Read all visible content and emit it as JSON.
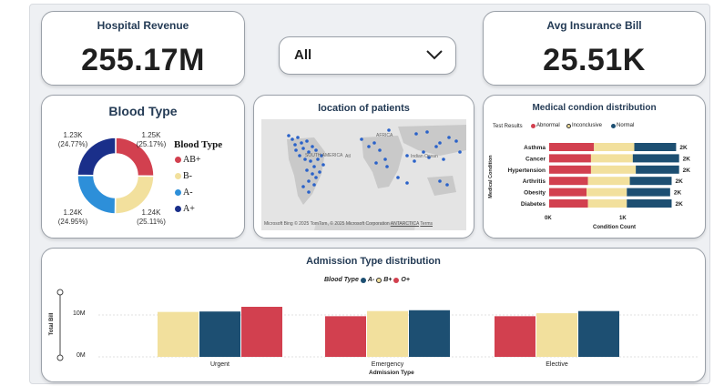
{
  "colors": {
    "red": "#d2404f",
    "cream": "#f2e09d",
    "navy": "#1d4f72",
    "blue": "#2d8fd9",
    "dark_blue": "#1a2f8a",
    "map_dot": "#2a62c9"
  },
  "kpi_revenue": {
    "title": "Hospital Revenue",
    "value": "255.17M"
  },
  "kpi_bill": {
    "title": "Avg Insurance Bill",
    "value": "25.51K"
  },
  "slicer": {
    "value": "All",
    "icon": "chevron-down-icon"
  },
  "blood": {
    "title": "Blood Type",
    "legend_title": "Blood Type",
    "legend": [
      "AB+",
      "B-",
      "A-",
      "A+"
    ],
    "labels": [
      {
        "value": "1.23K",
        "pct": "(24.77%)"
      },
      {
        "value": "1.25K",
        "pct": "(25.17%)"
      },
      {
        "value": "1.24K",
        "pct": "(24.95%)"
      },
      {
        "value": "1.24K",
        "pct": "(25.11%)"
      }
    ]
  },
  "map": {
    "title": "location of patients",
    "labels": [
      "SOUTH AMERICA",
      "AFRICA",
      "Indian Ocean",
      "ANTARCTICA",
      "Atl"
    ],
    "attribution": "© 2025 TomTom, © 2025 Microsoft Corporation",
    "terms": "Terms",
    "bing": "Microsoft Bing"
  },
  "medical": {
    "title": "Medical condion distribution",
    "legend_title": "Test Results",
    "legend": [
      "Abnormal",
      "Inconclusive",
      "Normal"
    ],
    "ylabel": "Medical Condition",
    "xlabel": "Condition Count",
    "xticks": [
      "0K",
      "1K"
    ]
  },
  "admission": {
    "title": "Admission Type distribution",
    "legend_title": "Blood Type",
    "legend": [
      "A-",
      "B+",
      "O+"
    ],
    "ylabel": "Total Bill",
    "xlabel": "Admission Type",
    "yticks": [
      "10M",
      "0M"
    ]
  },
  "chart_data": [
    {
      "type": "pie",
      "title": "Blood Type",
      "categories": [
        "AB+",
        "B-",
        "A-",
        "A+"
      ],
      "values": [
        1.25,
        1.24,
        1.24,
        1.23
      ],
      "unit": "K",
      "percent": [
        25.17,
        25.11,
        24.95,
        24.77
      ]
    },
    {
      "type": "bar",
      "title": "Medical condion distribution",
      "categories": [
        "Asthma",
        "Cancer",
        "Hypertension",
        "Arthritis",
        "Obesity",
        "Diabetes"
      ],
      "series": [
        {
          "name": "Abnormal",
          "values": [
            0.6,
            0.56,
            0.56,
            0.52,
            0.5,
            0.52
          ]
        },
        {
          "name": "Inconclusive",
          "values": [
            0.54,
            0.56,
            0.6,
            0.56,
            0.54,
            0.52
          ]
        },
        {
          "name": "Normal",
          "values": [
            0.56,
            0.62,
            0.58,
            0.56,
            0.58,
            0.6
          ]
        }
      ],
      "totals_label": [
        "2K",
        "2K",
        "2K",
        "2K",
        "2K",
        "2K"
      ],
      "xlim": [
        0,
        1.7
      ],
      "xlabel": "Condition Count",
      "ylabel": "Medical Condition"
    },
    {
      "type": "bar",
      "title": "Admission Type distribution",
      "categories": [
        "Urgent",
        "Emergency",
        "Elective"
      ],
      "series_by_category": [
        [
          {
            "name": "B+",
            "value": 10.5
          },
          {
            "name": "A-",
            "value": 10.6
          },
          {
            "name": "O+",
            "value": 11.7
          }
        ],
        [
          {
            "name": "O+",
            "value": 9.5
          },
          {
            "name": "B+",
            "value": 10.7
          },
          {
            "name": "A-",
            "value": 10.9
          }
        ],
        [
          {
            "name": "O+",
            "value": 9.5
          },
          {
            "name": "B+",
            "value": 10.2
          },
          {
            "name": "A-",
            "value": 10.7
          }
        ]
      ],
      "ylim": [
        0,
        13
      ],
      "ylabel": "Total Bill",
      "xlabel": "Admission Type"
    }
  ]
}
